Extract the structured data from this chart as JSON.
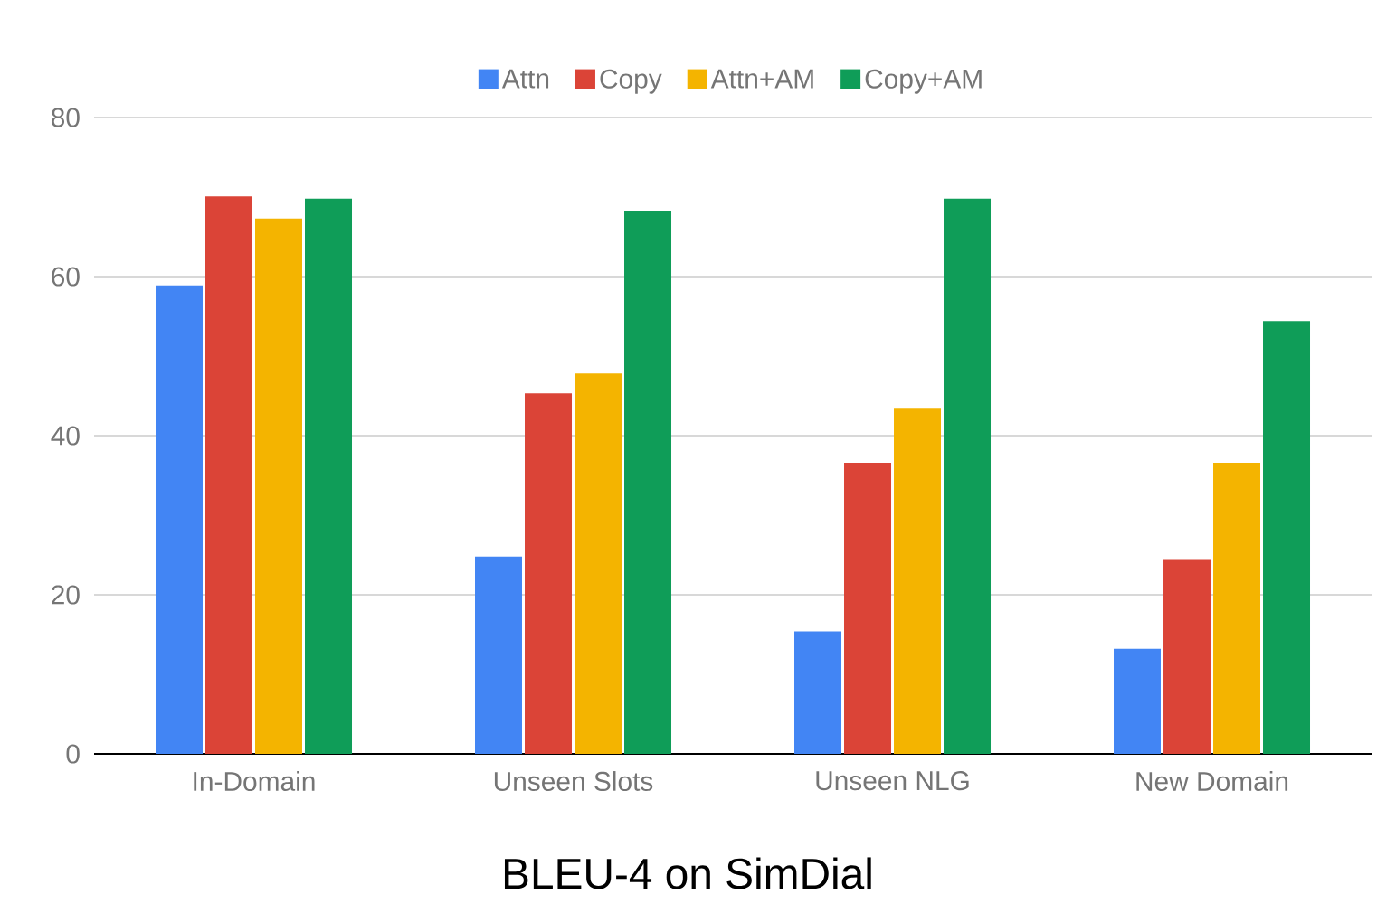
{
  "chart_data": {
    "type": "bar",
    "title": "BLEU-4 on SimDial",
    "categories": [
      "In-Domain",
      "Unseen Slots",
      "Unseen NLG",
      "New Domain"
    ],
    "series": [
      {
        "name": "Attn",
        "color": "#4285f4",
        "values": [
          58.9,
          24.8,
          15.4,
          13.2
        ]
      },
      {
        "name": "Copy",
        "color": "#db4437",
        "values": [
          70.1,
          45.3,
          36.6,
          24.5
        ]
      },
      {
        "name": "Attn+AM",
        "color": "#f4b400",
        "values": [
          67.3,
          47.8,
          43.5,
          36.6
        ]
      },
      {
        "name": "Copy+AM",
        "color": "#0f9d58",
        "values": [
          69.8,
          68.3,
          69.8,
          54.4
        ]
      }
    ],
    "ylim": [
      0,
      80
    ],
    "yticks": [
      0,
      20,
      40,
      60,
      80
    ],
    "grid": "y",
    "legend": "top"
  }
}
